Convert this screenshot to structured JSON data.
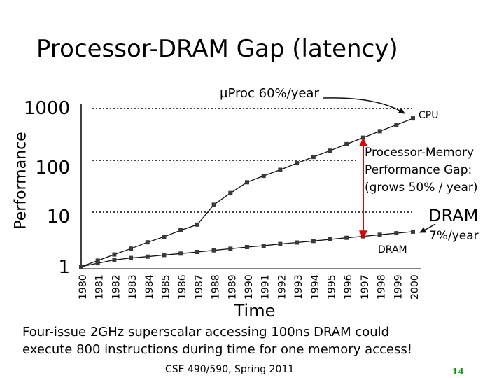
{
  "slide": {
    "title": "Processor-DRAM Gap (latency)",
    "caption_line1": "Four-issue 2GHz superscalar accessing 100ns DRAM could",
    "caption_line2": "execute 800 instructions during time for one memory access!",
    "footer": "CSE 490/590, Spring 2011",
    "page_number": "14"
  },
  "chart_data": {
    "type": "line",
    "title": "Processor-DRAM Gap (latency)",
    "xlabel": "Time",
    "ylabel": "Performance",
    "y_scale": "log",
    "ylim": [
      1,
      1000
    ],
    "y_ticks": [
      "1",
      "10",
      "100",
      "1000"
    ],
    "categories": [
      "1980",
      "1981",
      "1982",
      "1983",
      "1984",
      "1985",
      "1986",
      "1987",
      "1988",
      "1989",
      "1990",
      "1991",
      "1992",
      "1993",
      "1994",
      "1995",
      "1996",
      "1997",
      "1998",
      "1999",
      "2000"
    ],
    "series": [
      {
        "name": "CPU",
        "growth_label": "µProc 60%/year",
        "values": [
          1,
          1.3,
          1.7,
          2.2,
          2.9,
          3.7,
          4.9,
          6.3,
          15,
          25,
          40,
          53,
          69,
          92,
          121,
          159,
          211,
          280,
          371,
          490,
          650
        ]
      },
      {
        "name": "DRAM",
        "growth_label": "7%/year",
        "values": [
          1,
          1.16,
          1.34,
          1.46,
          1.55,
          1.66,
          1.77,
          1.9,
          2.04,
          2.19,
          2.35,
          2.5,
          2.69,
          2.87,
          3.07,
          3.29,
          3.53,
          3.77,
          4.04,
          4.32,
          4.62
        ]
      }
    ],
    "labels": {
      "cpu_top_label": "µProc 60%/year",
      "cpu_line_label": "CPU",
      "dram_big_label": "DRAM",
      "dram_rate_label": "7%/year",
      "dram_line_label": "DRAM",
      "gap_label_line1": "Processor-Memory",
      "gap_label_line2": "Performance Gap:",
      "gap_label_line3": "(grows 50% / year)"
    },
    "colors": {
      "marker": "#3a3a3a",
      "gap_arrow": "#e00000",
      "line": "#111111",
      "guide": "#000000"
    }
  }
}
